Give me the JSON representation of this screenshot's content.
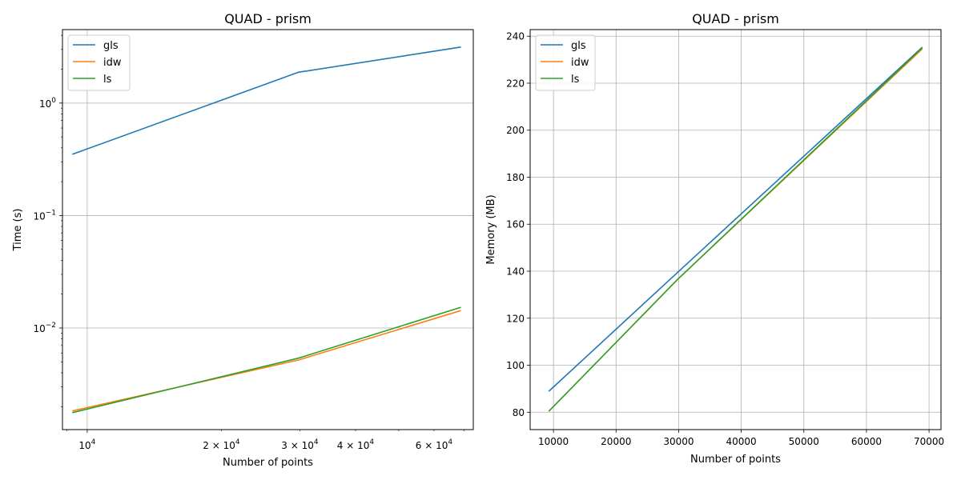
{
  "chart_data": [
    {
      "type": "line",
      "title": "QUAD - prism",
      "xlabel": "Number of points",
      "ylabel": "Time (s)",
      "xscale": "log",
      "yscale": "log",
      "xlim": [
        8800,
        73500
      ],
      "ylim": [
        0.00125,
        4.5
      ],
      "grid": true,
      "legend": "top-left",
      "x": [
        9261,
        29791,
        68921
      ],
      "series": [
        {
          "name": "gls",
          "color": "#1f77b4",
          "values": [
            0.35,
            1.88,
            3.15
          ]
        },
        {
          "name": "idw",
          "color": "#ff7f0e",
          "values": [
            0.00183,
            0.0052,
            0.0143
          ]
        },
        {
          "name": "ls",
          "color": "#2ca02c",
          "values": [
            0.00177,
            0.0054,
            0.0153
          ]
        }
      ],
      "x_ticks": [
        {
          "value": 10000,
          "base": "10",
          "exp": "4"
        },
        {
          "value": 20000,
          "base": "2 × 10",
          "exp": "4"
        },
        {
          "value": 30000,
          "base": "3 × 10",
          "exp": "4"
        },
        {
          "value": 40000,
          "base": "4 × 10",
          "exp": "4"
        },
        {
          "value": 60000,
          "base": "6 × 10",
          "exp": "4"
        }
      ],
      "y_ticks": [
        {
          "value": 1,
          "base": "10",
          "exp": "0"
        },
        {
          "value": 0.1,
          "base": "10",
          "exp": "−1"
        },
        {
          "value": 0.01,
          "base": "10",
          "exp": "−2"
        }
      ]
    },
    {
      "type": "line",
      "title": "QUAD - prism",
      "xlabel": "Number of points",
      "ylabel": "Memory (MB)",
      "xlim": [
        6276,
        71906
      ],
      "ylim": [
        72.6,
        242.8
      ],
      "grid": true,
      "legend": "top-left",
      "x": [
        9261,
        29791,
        68921
      ],
      "series": [
        {
          "name": "gls",
          "color": "#1f77b4",
          "values": [
            88.9,
            139.4,
            235.3
          ]
        },
        {
          "name": "idw",
          "color": "#ff7f0e",
          "values": [
            80.4,
            136.4,
            234.6
          ]
        },
        {
          "name": "ls",
          "color": "#2ca02c",
          "values": [
            80.4,
            136.4,
            235.1
          ]
        }
      ],
      "x_ticks": [
        "10000",
        "20000",
        "30000",
        "40000",
        "50000",
        "60000",
        "70000"
      ],
      "y_ticks": [
        "80",
        "100",
        "120",
        "140",
        "160",
        "180",
        "200",
        "220",
        "240"
      ]
    }
  ]
}
